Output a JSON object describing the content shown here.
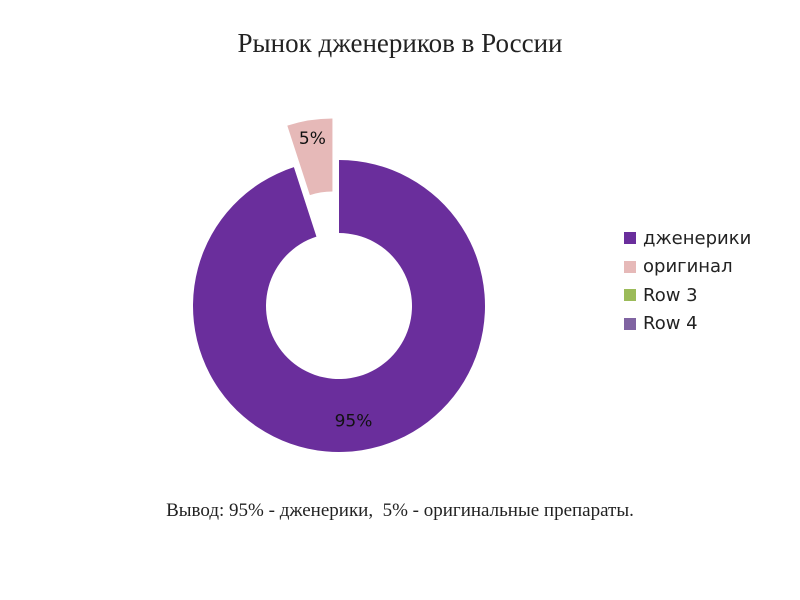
{
  "slide": {
    "title": "Рынок дженериков в России",
    "conclusion": "Вывод: 95% - дженерики,  5% - оригинальные препараты."
  },
  "chart_data": {
    "type": "pie",
    "subtype": "donut",
    "title": "",
    "categories": [
      "дженерики",
      "оригинал",
      "Row 3",
      "Row 4"
    ],
    "values": [
      95,
      5,
      0,
      0
    ],
    "data_labels": [
      "95%",
      "5%",
      "",
      ""
    ],
    "colors": [
      "#6a2e9c",
      "#e6b9b8",
      "#9bbb59",
      "#8064a2"
    ],
    "exploded": [
      false,
      true,
      false,
      false
    ],
    "legend_position": "right"
  }
}
